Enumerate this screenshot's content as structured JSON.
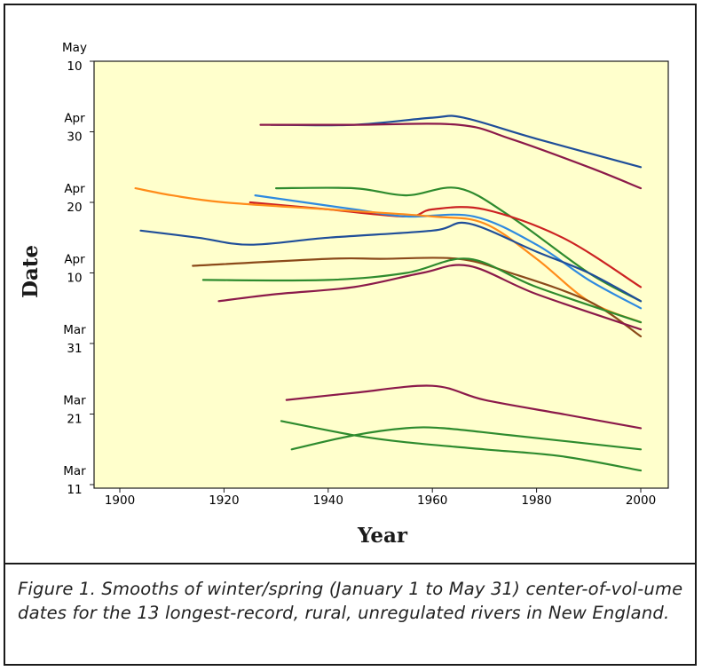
{
  "chart_data": {
    "type": "line",
    "title": "",
    "xlabel": "Year",
    "ylabel": "Date",
    "xlim": [
      1893,
      2010
    ],
    "ylim": [
      "03-11",
      "05-10"
    ],
    "x_ticks": [
      1900,
      1920,
      1940,
      1960,
      1980,
      2000
    ],
    "y_ticks": [
      {
        "month": "Mar",
        "day": "11",
        "date": "03-11"
      },
      {
        "month": "Mar",
        "day": "21",
        "date": "03-21"
      },
      {
        "month": "Mar",
        "day": "31",
        "date": "03-31"
      },
      {
        "month": "Apr",
        "day": "10",
        "date": "04-10"
      },
      {
        "month": "Apr",
        "day": "20",
        "date": "04-20"
      },
      {
        "month": "Apr",
        "day": "30",
        "date": "04-30"
      },
      {
        "month": "May",
        "day": "10",
        "date": "05-10"
      }
    ],
    "background": "#ffffcc",
    "grid": false,
    "series": [
      {
        "color": "#1f4e99",
        "points": [
          [
            1929,
            "05-01"
          ],
          [
            1945,
            "05-01"
          ],
          [
            1960,
            "05-02"
          ],
          [
            1966,
            "05-02"
          ],
          [
            1980,
            "04-29"
          ],
          [
            2000,
            "04-25"
          ]
        ]
      },
      {
        "color": "#8b1a4a",
        "points": [
          [
            1927,
            "05-01"
          ],
          [
            1945,
            "05-01"
          ],
          [
            1965,
            "05-01"
          ],
          [
            1975,
            "04-29"
          ],
          [
            1990,
            "04-25"
          ],
          [
            2000,
            "04-22"
          ]
        ]
      },
      {
        "color": "#2e8b2e",
        "points": [
          [
            1930,
            "04-22"
          ],
          [
            1945,
            "04-22"
          ],
          [
            1955,
            "04-21"
          ],
          [
            1965,
            "04-22"
          ],
          [
            1975,
            "04-18"
          ],
          [
            1990,
            "04-10"
          ],
          [
            2000,
            "04-06"
          ]
        ]
      },
      {
        "color": "#cc2222",
        "points": [
          [
            1925,
            "04-20"
          ],
          [
            1940,
            "04-19"
          ],
          [
            1955,
            "04-18"
          ],
          [
            1960,
            "04-19"
          ],
          [
            1970,
            "04-19"
          ],
          [
            1985,
            "04-15"
          ],
          [
            2000,
            "04-08"
          ]
        ]
      },
      {
        "color": "#2e8ae0",
        "points": [
          [
            1926,
            "04-21"
          ],
          [
            1945,
            "04-19"
          ],
          [
            1955,
            "04-18"
          ],
          [
            1968,
            "04-18"
          ],
          [
            1980,
            "04-14"
          ],
          [
            1990,
            "04-09"
          ],
          [
            2000,
            "04-05"
          ]
        ]
      },
      {
        "color": "#ff8c1a",
        "points": [
          [
            1903,
            "04-22"
          ],
          [
            1910,
            "04-21"
          ],
          [
            1920,
            "04-20"
          ],
          [
            1940,
            "04-19"
          ],
          [
            1960,
            "04-18"
          ],
          [
            1970,
            "04-17"
          ],
          [
            1980,
            "04-12"
          ],
          [
            1990,
            "04-06"
          ],
          [
            2000,
            "04-03"
          ]
        ]
      },
      {
        "color": "#1f4e99",
        "points": [
          [
            1904,
            "04-16"
          ],
          [
            1915,
            "04-15"
          ],
          [
            1925,
            "04-14"
          ],
          [
            1940,
            "04-15"
          ],
          [
            1960,
            "04-16"
          ],
          [
            1967,
            "04-17"
          ],
          [
            1980,
            "04-13"
          ],
          [
            1990,
            "04-10"
          ],
          [
            2000,
            "04-06"
          ]
        ]
      },
      {
        "color": "#8b4a1a",
        "points": [
          [
            1914,
            "04-11"
          ],
          [
            1940,
            "04-12"
          ],
          [
            1950,
            "04-12"
          ],
          [
            1965,
            "04-12"
          ],
          [
            1975,
            "04-10"
          ],
          [
            1990,
            "04-06"
          ],
          [
            2000,
            "04-01"
          ]
        ]
      },
      {
        "color": "#2e8b2e",
        "points": [
          [
            1916,
            "04-09"
          ],
          [
            1940,
            "04-09"
          ],
          [
            1955,
            "04-10"
          ],
          [
            1967,
            "04-12"
          ],
          [
            1980,
            "04-08"
          ],
          [
            2000,
            "04-03"
          ]
        ]
      },
      {
        "color": "#8b1a4a",
        "points": [
          [
            1919,
            "04-06"
          ],
          [
            1930,
            "04-07"
          ],
          [
            1945,
            "04-08"
          ],
          [
            1958,
            "04-10"
          ],
          [
            1967,
            "04-11"
          ],
          [
            1980,
            "04-07"
          ],
          [
            2000,
            "04-02"
          ]
        ]
      },
      {
        "color": "#8b1a4a",
        "points": [
          [
            1932,
            "03-23"
          ],
          [
            1945,
            "03-24"
          ],
          [
            1960,
            "03-25"
          ],
          [
            1970,
            "03-23"
          ],
          [
            1985,
            "03-21"
          ],
          [
            2000,
            "03-19"
          ]
        ]
      },
      {
        "color": "#2e8b2e",
        "points": [
          [
            1931,
            "03-20"
          ],
          [
            1945,
            "03-18"
          ],
          [
            1955,
            "03-17"
          ],
          [
            1970,
            "03-16"
          ],
          [
            1985,
            "03-15"
          ],
          [
            2000,
            "03-13"
          ]
        ]
      },
      {
        "color": "#2e8b2e",
        "points": [
          [
            1933,
            "03-16"
          ],
          [
            1945,
            "03-18"
          ],
          [
            1955,
            "03-19"
          ],
          [
            1962,
            "03-19"
          ],
          [
            1975,
            "03-18"
          ],
          [
            2000,
            "03-16"
          ]
        ]
      }
    ]
  },
  "caption": {
    "text": "Figure 1. Smooths of winter/spring (January 1 to May 31) center-of-vol-ume dates for the 13 longest-record, rural, unregulated rivers in New England."
  }
}
